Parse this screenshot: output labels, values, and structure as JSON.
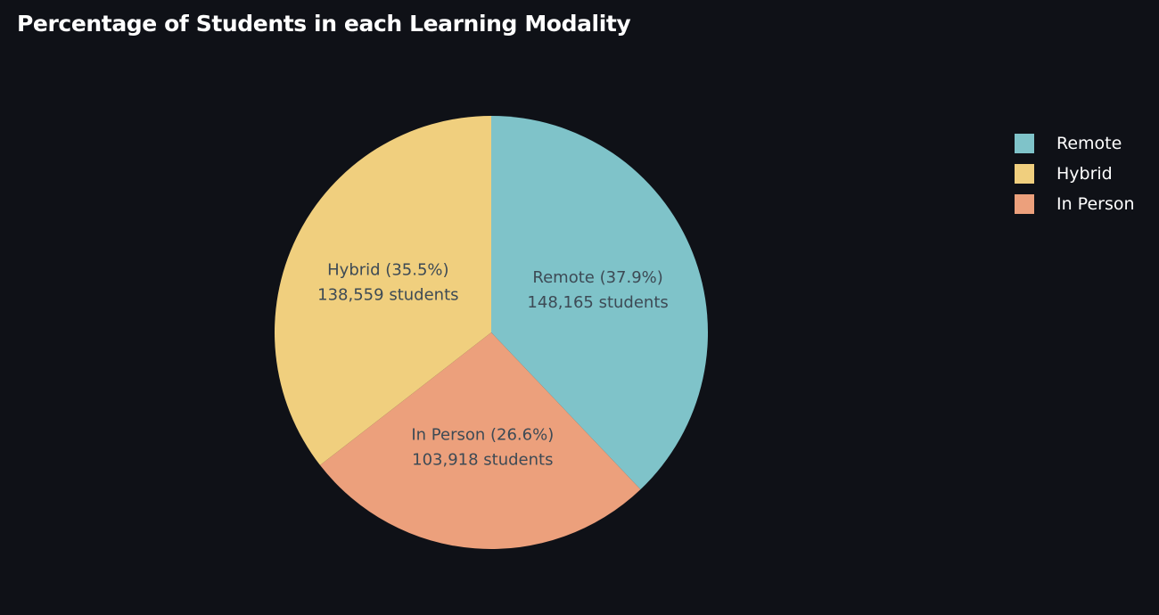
{
  "title": "Percentage of Students in each Learning Modality",
  "chart_data": {
    "type": "pie",
    "title": "Percentage of Students in each Learning Modality",
    "slices": [
      {
        "label": "Remote",
        "percent": 37.9,
        "value": 148165,
        "percent_text": "Remote (37.9%)",
        "value_text": "148,165 students",
        "color": "#7fc3c9"
      },
      {
        "label": "Hybrid",
        "percent": 35.5,
        "value": 138559,
        "percent_text": "Hybrid (35.5%)",
        "value_text": "138,559 students",
        "color": "#f0cf7e"
      },
      {
        "label": "In Person",
        "percent": 26.6,
        "value": 103918,
        "percent_text": "In Person (26.6%)",
        "value_text": "103,918 students",
        "color": "#eca07c"
      }
    ],
    "slice_order_clockwise_from_top": [
      "Remote",
      "In Person",
      "Hybrid"
    ],
    "legend": {
      "placement": "right",
      "entries": [
        "Remote",
        "Hybrid",
        "In Person"
      ]
    }
  }
}
